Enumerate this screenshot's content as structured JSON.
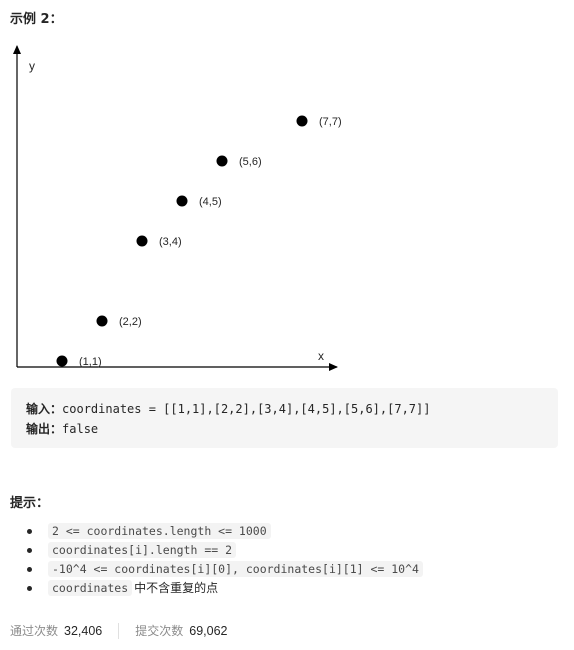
{
  "example": {
    "title": "示例 2："
  },
  "chart_data": {
    "type": "scatter",
    "xlabel": "x",
    "ylabel": "y",
    "points": [
      {
        "x": 1,
        "y": 1,
        "label": "(1,1)"
      },
      {
        "x": 2,
        "y": 2,
        "label": "(2,2)"
      },
      {
        "x": 3,
        "y": 4,
        "label": "(3,4)"
      },
      {
        "x": 4,
        "y": 5,
        "label": "(4,5)"
      },
      {
        "x": 5,
        "y": 6,
        "label": "(5,6)"
      },
      {
        "x": 7,
        "y": 7,
        "label": "(7,7)"
      }
    ],
    "xlim": [
      0,
      8
    ],
    "ylim": [
      0,
      8
    ],
    "grid": false
  },
  "io": {
    "input_label": "输入：",
    "input_value": "coordinates = [[1,1],[2,2],[3,4],[4,5],[5,6],[7,7]]",
    "output_label": "输出：",
    "output_value": "false"
  },
  "hints": {
    "title": "提示：",
    "items": [
      {
        "code": "2 <=  coordinates.length <= 1000",
        "text": ""
      },
      {
        "code": "coordinates[i].length == 2",
        "text": ""
      },
      {
        "code": "-10^4 <=  coordinates[i][0],  coordinates[i][1] <= 10^4",
        "text": ""
      },
      {
        "code": "coordinates",
        "text": "中不含重复的点"
      }
    ]
  },
  "stats": {
    "passed_label": "通过次数",
    "passed_value": "32,406",
    "submitted_label": "提交次数",
    "submitted_value": "69,062"
  }
}
